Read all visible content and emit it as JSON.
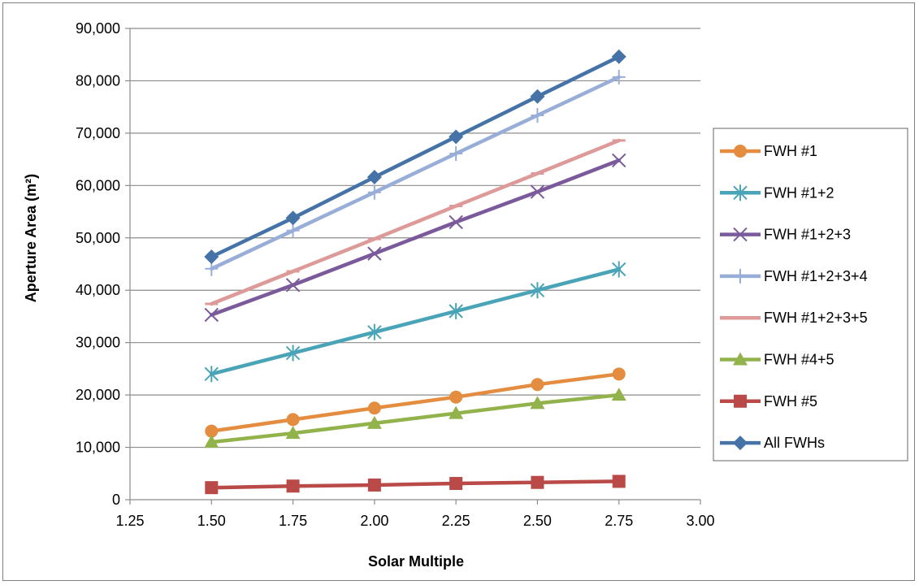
{
  "chart_data": {
    "type": "line",
    "title": "",
    "xlabel": "Solar Multiple",
    "ylabel": "Aperture Area (m²)",
    "xlim": [
      1.25,
      3.0
    ],
    "ylim": [
      0,
      90000
    ],
    "x_ticks": [
      "1.25",
      "1.50",
      "1.75",
      "2.00",
      "2.25",
      "2.50",
      "2.75",
      "3.00"
    ],
    "y_ticks": [
      "0",
      "10,000",
      "20,000",
      "30,000",
      "40,000",
      "50,000",
      "60,000",
      "70,000",
      "80,000",
      "90,000"
    ],
    "grid": true,
    "legend_position": "right",
    "x": [
      1.5,
      1.75,
      2.0,
      2.25,
      2.5,
      2.75
    ],
    "series": [
      {
        "name": "FWH #1",
        "color": "#e48c3f",
        "marker": "circle",
        "values": [
          13100,
          15300,
          17500,
          19600,
          22000,
          24000
        ]
      },
      {
        "name": "FWH #1+2",
        "color": "#4aa4b7",
        "marker": "asterisk",
        "values": [
          24000,
          28000,
          32000,
          36000,
          40000,
          44000
        ]
      },
      {
        "name": "FWH #1+2+3",
        "color": "#7a5a9a",
        "marker": "x",
        "values": [
          35300,
          41000,
          47000,
          53000,
          58800,
          64800
        ]
      },
      {
        "name": "FWH #1+2+3+4",
        "color": "#98aed8",
        "marker": "plus",
        "values": [
          44100,
          51400,
          58700,
          66100,
          73400,
          80700
        ]
      },
      {
        "name": "FWH #1+2+3+5",
        "color": "#dd9a98",
        "marker": "dash",
        "values": [
          37400,
          43600,
          49800,
          56100,
          62300,
          68600
        ]
      },
      {
        "name": "FWH #4+5",
        "color": "#92b24b",
        "marker": "triangle",
        "values": [
          11000,
          12700,
          14600,
          16500,
          18400,
          20000
        ]
      },
      {
        "name": "FWH #5",
        "color": "#b94a48",
        "marker": "square",
        "values": [
          2300,
          2600,
          2800,
          3100,
          3300,
          3500
        ]
      },
      {
        "name": "All FWHs",
        "color": "#4573a7",
        "marker": "diamond",
        "values": [
          46400,
          53800,
          61600,
          69300,
          77000,
          84600
        ]
      }
    ]
  }
}
